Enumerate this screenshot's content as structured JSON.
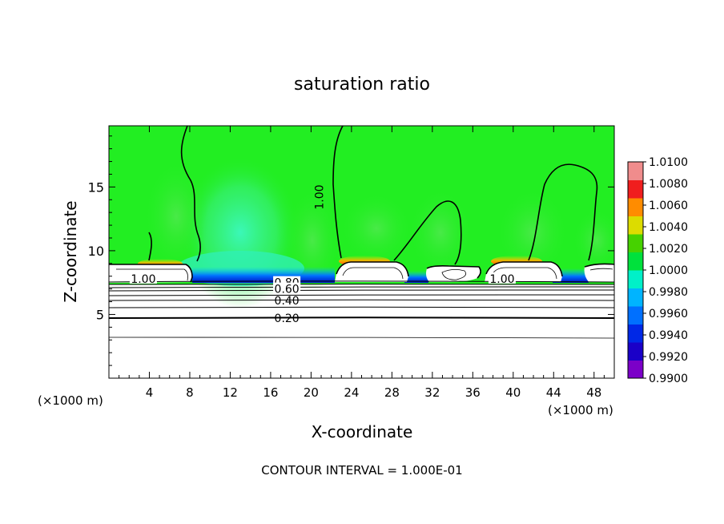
{
  "chart_data": {
    "type": "heatmap",
    "title": "saturation ratio",
    "xlabel": "X-coordinate",
    "ylabel": "Z-coordinate",
    "x_unit_left": "(×1000 m)",
    "x_unit_right": "(×1000 m)",
    "xlim": [
      0,
      50
    ],
    "ylim": [
      0,
      19.8
    ],
    "x_ticks": [
      4,
      8,
      12,
      16,
      20,
      24,
      28,
      32,
      36,
      40,
      44,
      48
    ],
    "x_tick_labels": [
      "4",
      "8",
      "12",
      "16",
      "20",
      "24",
      "28",
      "32",
      "36",
      "40",
      "44",
      "48"
    ],
    "y_ticks": [
      5,
      10,
      15
    ],
    "y_tick_labels": [
      "5",
      "10",
      "15"
    ],
    "contour_interval_text": "CONTOUR INTERVAL = 1.000E-01",
    "colorbar": {
      "values": [
        0.99,
        0.992,
        0.994,
        0.996,
        0.998,
        1.0,
        1.002,
        1.004,
        1.006,
        1.008,
        1.01
      ],
      "labels": [
        "0.9900",
        "0.9920",
        "0.9940",
        "0.9960",
        "0.9980",
        "1.0000",
        "1.0020",
        "1.0040",
        "1.0060",
        "1.0080",
        "1.0100"
      ],
      "colors": [
        "#7b00c8",
        "#1a00c8",
        "#0028e6",
        "#0070ff",
        "#00b4ff",
        "#00f0c8",
        "#00e13c",
        "#46d200",
        "#dcdc00",
        "#ff8c00",
        "#f01e1e",
        "#f08c8c"
      ]
    },
    "contour_labels": [
      {
        "text": "1.00",
        "x": 20.8,
        "z": 14.2,
        "rotate": -90
      },
      {
        "text": "1.00",
        "x": 3.4,
        "z": 7.8,
        "rotate": 0
      },
      {
        "text": "1.00",
        "x": 38.9,
        "z": 7.8,
        "rotate": 0
      },
      {
        "text": "0.80",
        "x": 17.6,
        "z": 7.5,
        "rotate": 0
      },
      {
        "text": "0.60",
        "x": 17.6,
        "z": 7.0,
        "rotate": 0
      },
      {
        "text": "0.40",
        "x": 17.6,
        "z": 6.1,
        "rotate": 0
      },
      {
        "text": "0.20",
        "x": 17.6,
        "z": 4.7,
        "rotate": 0
      }
    ]
  }
}
